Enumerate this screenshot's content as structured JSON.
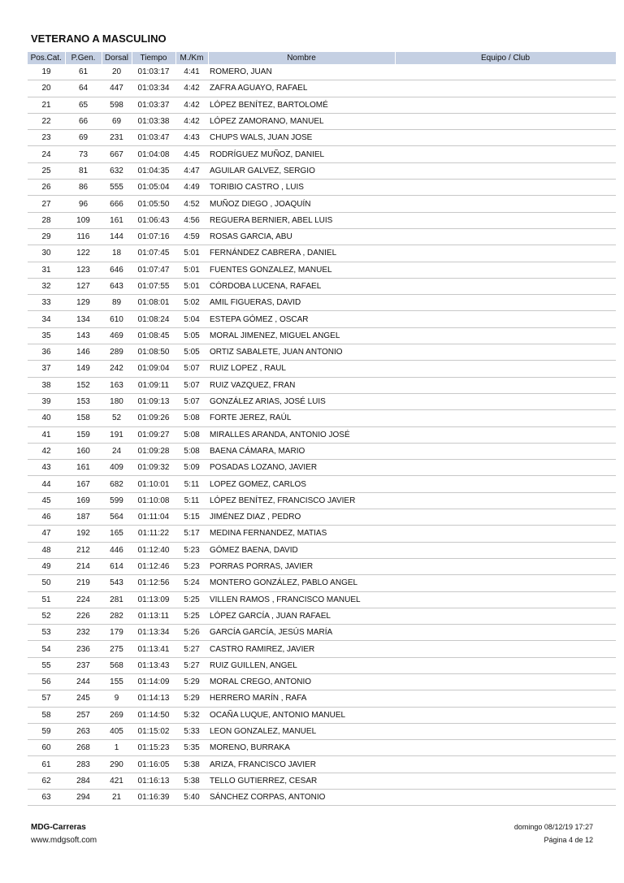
{
  "title": "VETERANO A MASCULINO",
  "columns": [
    "Pos.Cat.",
    "P.Gen.",
    "Dorsal",
    "Tiempo",
    "M./Km",
    "Nombre",
    "Equipo / Club"
  ],
  "rows": [
    [
      "19",
      "61",
      "20",
      "01:03:17",
      "4:41",
      "ROMERO, JUAN",
      ""
    ],
    [
      "20",
      "64",
      "447",
      "01:03:34",
      "4:42",
      "ZAFRA AGUAYO, RAFAEL",
      ""
    ],
    [
      "21",
      "65",
      "598",
      "01:03:37",
      "4:42",
      "LÓPEZ BENÍTEZ, BARTOLOMÉ",
      ""
    ],
    [
      "22",
      "66",
      "69",
      "01:03:38",
      "4:42",
      "LÓPEZ ZAMORANO, MANUEL",
      ""
    ],
    [
      "23",
      "69",
      "231",
      "01:03:47",
      "4:43",
      "CHUPS WALS, JUAN JOSE",
      ""
    ],
    [
      "24",
      "73",
      "667",
      "01:04:08",
      "4:45",
      "RODRÍGUEZ MUÑOZ, DANIEL",
      ""
    ],
    [
      "25",
      "81",
      "632",
      "01:04:35",
      "4:47",
      "AGUILAR GALVEZ, SERGIO",
      ""
    ],
    [
      "26",
      "86",
      "555",
      "01:05:04",
      "4:49",
      "TORIBIO CASTRO , LUIS",
      ""
    ],
    [
      "27",
      "96",
      "666",
      "01:05:50",
      "4:52",
      "MUÑOZ DIEGO , JOAQUÍN",
      ""
    ],
    [
      "28",
      "109",
      "161",
      "01:06:43",
      "4:56",
      "REGUERA BERNIER, ABEL LUIS",
      ""
    ],
    [
      "29",
      "116",
      "144",
      "01:07:16",
      "4:59",
      "ROSAS GARCIA, ABU",
      ""
    ],
    [
      "30",
      "122",
      "18",
      "01:07:45",
      "5:01",
      "FERNÁNDEZ CABRERA , DANIEL",
      ""
    ],
    [
      "31",
      "123",
      "646",
      "01:07:47",
      "5:01",
      "FUENTES GONZALEZ, MANUEL",
      ""
    ],
    [
      "32",
      "127",
      "643",
      "01:07:55",
      "5:01",
      "CÓRDOBA LUCENA, RAFAEL",
      ""
    ],
    [
      "33",
      "129",
      "89",
      "01:08:01",
      "5:02",
      "AMIL FIGUERAS, DAVID",
      ""
    ],
    [
      "34",
      "134",
      "610",
      "01:08:24",
      "5:04",
      "ESTEPA GÓMEZ , OSCAR",
      ""
    ],
    [
      "35",
      "143",
      "469",
      "01:08:45",
      "5:05",
      "MORAL JIMENEZ, MIGUEL ANGEL",
      ""
    ],
    [
      "36",
      "146",
      "289",
      "01:08:50",
      "5:05",
      "ORTIZ SABALETE, JUAN ANTONIO",
      ""
    ],
    [
      "37",
      "149",
      "242",
      "01:09:04",
      "5:07",
      "RUIZ LOPEZ , RAUL",
      ""
    ],
    [
      "38",
      "152",
      "163",
      "01:09:11",
      "5:07",
      "RUIZ VAZQUEZ, FRAN",
      ""
    ],
    [
      "39",
      "153",
      "180",
      "01:09:13",
      "5:07",
      "GONZÁLEZ ARIAS, JOSÉ LUIS",
      ""
    ],
    [
      "40",
      "158",
      "52",
      "01:09:26",
      "5:08",
      "FORTE JEREZ, RAÚL",
      ""
    ],
    [
      "41",
      "159",
      "191",
      "01:09:27",
      "5:08",
      "MIRALLES ARANDA, ANTONIO JOSÉ",
      ""
    ],
    [
      "42",
      "160",
      "24",
      "01:09:28",
      "5:08",
      "BAENA CÁMARA, MARIO",
      ""
    ],
    [
      "43",
      "161",
      "409",
      "01:09:32",
      "5:09",
      "POSADAS LOZANO, JAVIER",
      ""
    ],
    [
      "44",
      "167",
      "682",
      "01:10:01",
      "5:11",
      "LOPEZ GOMEZ, CARLOS",
      ""
    ],
    [
      "45",
      "169",
      "599",
      "01:10:08",
      "5:11",
      "LÓPEZ BENÍTEZ, FRANCISCO JAVIER",
      ""
    ],
    [
      "46",
      "187",
      "564",
      "01:11:04",
      "5:15",
      "JIMÉNEZ DIAZ , PEDRO",
      ""
    ],
    [
      "47",
      "192",
      "165",
      "01:11:22",
      "5:17",
      "MEDINA FERNANDEZ, MATIAS",
      ""
    ],
    [
      "48",
      "212",
      "446",
      "01:12:40",
      "5:23",
      "GÓMEZ BAENA, DAVID",
      ""
    ],
    [
      "49",
      "214",
      "614",
      "01:12:46",
      "5:23",
      "PORRAS PORRAS, JAVIER",
      ""
    ],
    [
      "50",
      "219",
      "543",
      "01:12:56",
      "5:24",
      "MONTERO GONZÁLEZ, PABLO ANGEL",
      ""
    ],
    [
      "51",
      "224",
      "281",
      "01:13:09",
      "5:25",
      "VILLEN RAMOS , FRANCISCO MANUEL",
      ""
    ],
    [
      "52",
      "226",
      "282",
      "01:13:11",
      "5:25",
      "LÓPEZ GARCÍA , JUAN RAFAEL",
      ""
    ],
    [
      "53",
      "232",
      "179",
      "01:13:34",
      "5:26",
      "GARCÍA GARCÍA, JESÚS MARÍA",
      ""
    ],
    [
      "54",
      "236",
      "275",
      "01:13:41",
      "5:27",
      "CASTRO RAMIREZ, JAVIER",
      ""
    ],
    [
      "55",
      "237",
      "568",
      "01:13:43",
      "5:27",
      "RUIZ GUILLEN, ANGEL",
      ""
    ],
    [
      "56",
      "244",
      "155",
      "01:14:09",
      "5:29",
      "MORAL CREGO, ANTONIO",
      ""
    ],
    [
      "57",
      "245",
      "9",
      "01:14:13",
      "5:29",
      "HERRERO MARÍN , RAFA",
      ""
    ],
    [
      "58",
      "257",
      "269",
      "01:14:50",
      "5:32",
      "OCAÑA LUQUE, ANTONIO MANUEL",
      ""
    ],
    [
      "59",
      "263",
      "405",
      "01:15:02",
      "5:33",
      "LEON GONZALEZ, MANUEL",
      ""
    ],
    [
      "60",
      "268",
      "1",
      "01:15:23",
      "5:35",
      "MORENO, BURRAKA",
      ""
    ],
    [
      "61",
      "283",
      "290",
      "01:16:05",
      "5:38",
      "ARIZA, FRANCISCO JAVIER",
      ""
    ],
    [
      "62",
      "284",
      "421",
      "01:16:13",
      "5:38",
      "TELLO GUTIERREZ, CESAR",
      ""
    ],
    [
      "63",
      "294",
      "21",
      "01:16:39",
      "5:40",
      "SÁNCHEZ CORPAS, ANTONIO",
      ""
    ]
  ],
  "footer": {
    "brand": "MDG-Carreras",
    "website": "www.mdgsoft.com",
    "datetime": "domingo 08/12/19 17:27",
    "page": "Página 4 de 12"
  },
  "colors": {
    "header_bg": "#c5d0e3"
  }
}
